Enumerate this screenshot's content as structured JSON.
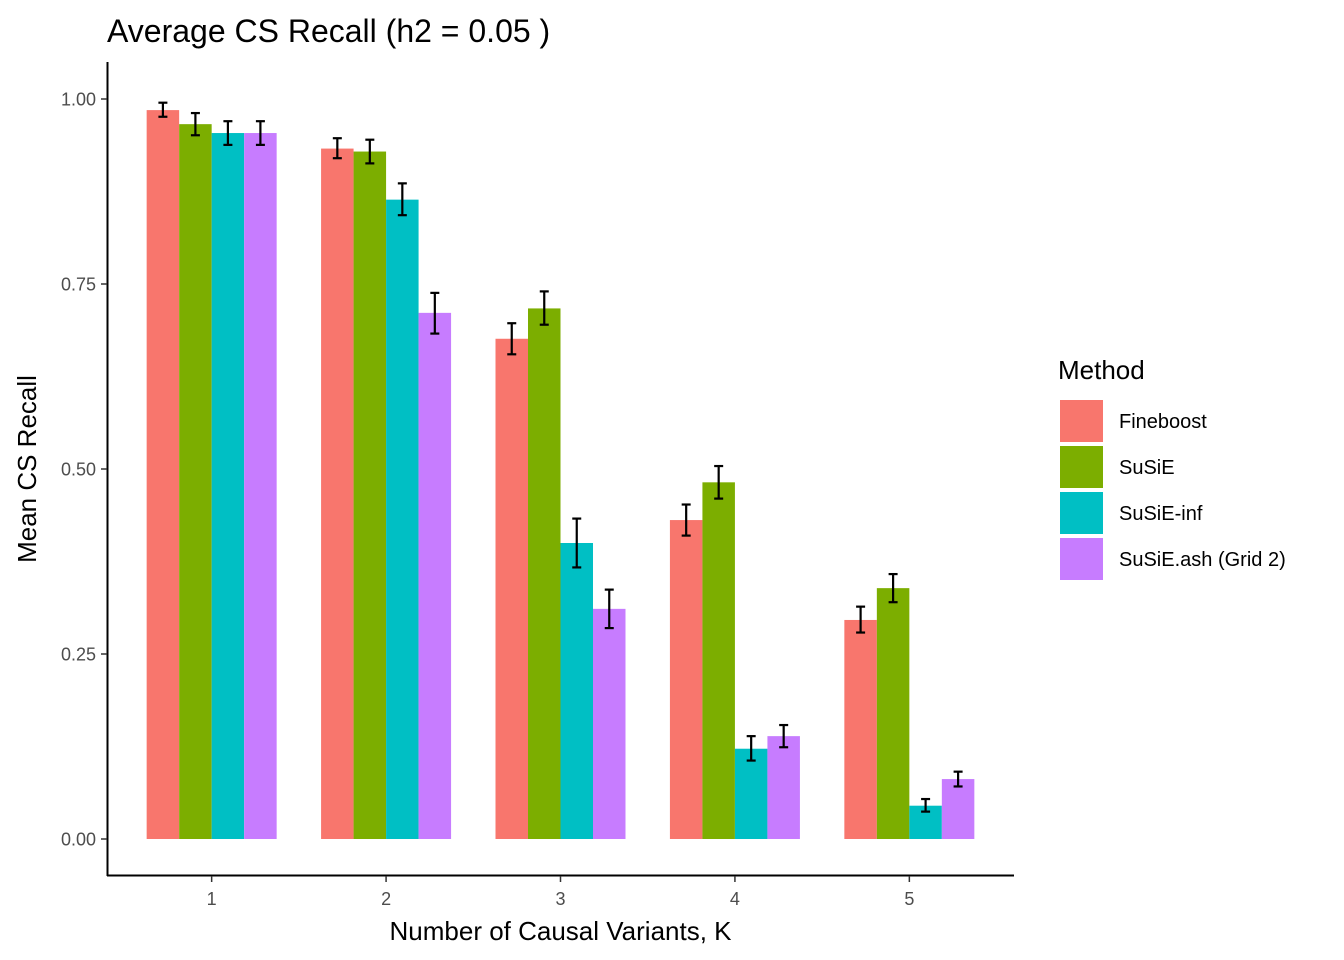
{
  "chart_data": {
    "type": "bar",
    "title": "Average CS Recall (h2 = 0.05 )",
    "xlabel": "Number of Causal Variants, K",
    "ylabel": "Mean CS Recall",
    "categories": [
      "1",
      "2",
      "3",
      "4",
      "5"
    ],
    "ylim": [
      -0.05,
      1.05
    ],
    "yticks": [
      "0.00",
      "0.25",
      "0.50",
      "0.75",
      "1.00"
    ],
    "grid": false,
    "legend": {
      "title": "Method",
      "position": "right"
    },
    "series": [
      {
        "name": "Fineboost",
        "color": "#F8766D",
        "values": [
          0.985,
          0.933,
          0.676,
          0.431,
          0.296
        ],
        "error_low": [
          0.976,
          0.92,
          0.655,
          0.41,
          0.279
        ],
        "error_high": [
          0.995,
          0.947,
          0.697,
          0.452,
          0.314
        ]
      },
      {
        "name": "SuSiE",
        "color": "#7CAE00",
        "values": [
          0.966,
          0.929,
          0.717,
          0.482,
          0.339
        ],
        "error_low": [
          0.951,
          0.913,
          0.695,
          0.46,
          0.32
        ],
        "error_high": [
          0.981,
          0.945,
          0.74,
          0.504,
          0.358
        ]
      },
      {
        "name": "SuSiE-inf",
        "color": "#00BFC4",
        "values": [
          0.954,
          0.864,
          0.4,
          0.122,
          0.045
        ],
        "error_low": [
          0.938,
          0.843,
          0.367,
          0.106,
          0.037
        ],
        "error_high": [
          0.97,
          0.886,
          0.433,
          0.139,
          0.054
        ]
      },
      {
        "name": "SuSiE.ash (Grid 2)",
        "color": "#C77CFF",
        "values": [
          0.954,
          0.711,
          0.311,
          0.139,
          0.081
        ],
        "error_low": [
          0.938,
          0.683,
          0.285,
          0.124,
          0.071
        ],
        "error_high": [
          0.97,
          0.738,
          0.337,
          0.154,
          0.091
        ]
      }
    ]
  }
}
